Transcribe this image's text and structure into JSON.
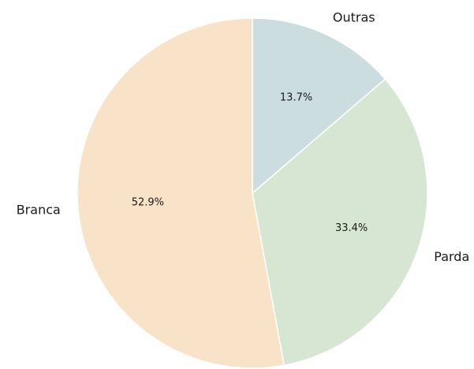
{
  "chart_data": {
    "type": "pie",
    "title": "",
    "start_angle_deg": 90,
    "direction": "clockwise",
    "slices": [
      {
        "label": "Outras",
        "value": 13.7,
        "pct_label": "13.7%",
        "color": "#ccdde0"
      },
      {
        "label": "Parda",
        "value": 33.4,
        "pct_label": "33.4%",
        "color": "#d6e6d2"
      },
      {
        "label": "Branca",
        "value": 52.9,
        "pct_label": "52.9%",
        "color": "#f8e2c8"
      }
    ]
  }
}
